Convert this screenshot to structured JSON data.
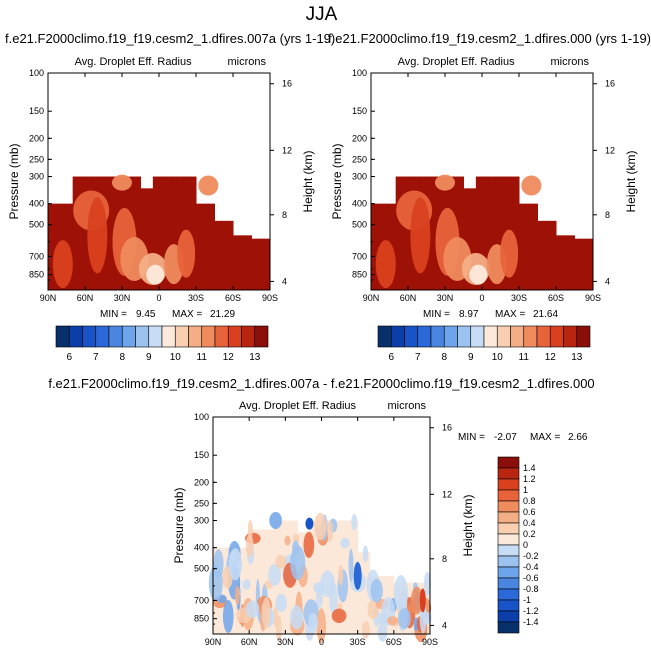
{
  "page": {
    "title": "JJA"
  },
  "colors": {
    "contour_levels": [
      "#08306b",
      "#0b3ea8",
      "#1853c8",
      "#2b68d8",
      "#4a86e0",
      "#6ea4ea",
      "#9cc3f0",
      "#c7dcf5",
      "#eaf1fa",
      "#fbe9dc",
      "#f8cfb1",
      "#f4ae85",
      "#ef8b5d",
      "#e8633a",
      "#d9411e",
      "#b82510",
      "#8a0f0a"
    ],
    "main_fill_dark": "#9e1106",
    "diff_fill_base": "#fbe8d9"
  },
  "chart_data": [
    {
      "type": "heatmap",
      "id": "panel-a",
      "case_title": "f.e21.F2000climo.f19_f19.cesm2_1.dfires.007a (yrs 1-19)",
      "subtitle": "Avg. Droplet Eff. Radius",
      "units": "microns",
      "ylabel": "Pressure (mb)",
      "ylabel_right": "Height (km)",
      "x_ticks": [
        "90N",
        "60N",
        "30N",
        "0",
        "30S",
        "60S",
        "90S"
      ],
      "y_ticks": [
        "100",
        "150",
        "200",
        "250",
        "300",
        "400",
        "500",
        "700",
        "850"
      ],
      "height_ticks": [
        "16",
        "12",
        "8",
        "4"
      ],
      "ylim": [
        100,
        1000
      ],
      "xlim": [
        "90N",
        "90S"
      ],
      "min_label": "MIN =",
      "min_value": "9.45",
      "max_label": "MAX =",
      "max_value": "21.29",
      "colorbar_labels": [
        "6",
        "7",
        "8",
        "9",
        "10",
        "11",
        "12",
        "13"
      ],
      "colorbar_orientation": "horizontal"
    },
    {
      "type": "heatmap",
      "id": "panel-b",
      "case_title": "f.e21.F2000climo.f19_f19.cesm2_1.dfires.000 (yrs 1-19)",
      "subtitle": "Avg. Droplet Eff. Radius",
      "units": "microns",
      "ylabel": "Pressure (mb)",
      "ylabel_right": "Height (km)",
      "x_ticks": [
        "90N",
        "60N",
        "30N",
        "0",
        "30S",
        "60S",
        "90S"
      ],
      "y_ticks": [
        "100",
        "150",
        "200",
        "250",
        "300",
        "400",
        "500",
        "700",
        "850"
      ],
      "height_ticks": [
        "16",
        "12",
        "8",
        "4"
      ],
      "ylim": [
        100,
        1000
      ],
      "xlim": [
        "90N",
        "90S"
      ],
      "min_label": "MIN =",
      "min_value": "8.97",
      "max_label": "MAX =",
      "max_value": "21.64",
      "colorbar_labels": [
        "6",
        "7",
        "8",
        "9",
        "10",
        "11",
        "12",
        "13"
      ],
      "colorbar_orientation": "horizontal"
    },
    {
      "type": "heatmap",
      "id": "panel-diff",
      "case_title": "f.e21.F2000climo.f19_f19.cesm2_1.dfires.007a - f.e21.F2000climo.f19_f19.cesm2_1.dfires.000",
      "subtitle": "Avg. Droplet Eff. Radius",
      "units": "microns",
      "ylabel": "Pressure (mb)",
      "ylabel_right": "Height (km)",
      "x_ticks": [
        "90N",
        "60N",
        "30N",
        "0",
        "30S",
        "60S",
        "90S"
      ],
      "y_ticks": [
        "100",
        "150",
        "200",
        "250",
        "300",
        "400",
        "500",
        "700",
        "850"
      ],
      "height_ticks": [
        "16",
        "12",
        "8",
        "4"
      ],
      "ylim": [
        100,
        1000
      ],
      "xlim": [
        "90N",
        "90S"
      ],
      "min_label": "MIN =",
      "min_value": "-2.07",
      "max_label": "MAX =",
      "max_value": "2.66",
      "colorbar_labels": [
        "1.4",
        "1.2",
        "1",
        "0.8",
        "0.6",
        "0.4",
        "0.2",
        "0",
        "-0.2",
        "-0.4",
        "-0.6",
        "-0.8",
        "-1",
        "-1.2",
        "-1.4"
      ],
      "colorbar_orientation": "vertical"
    }
  ]
}
